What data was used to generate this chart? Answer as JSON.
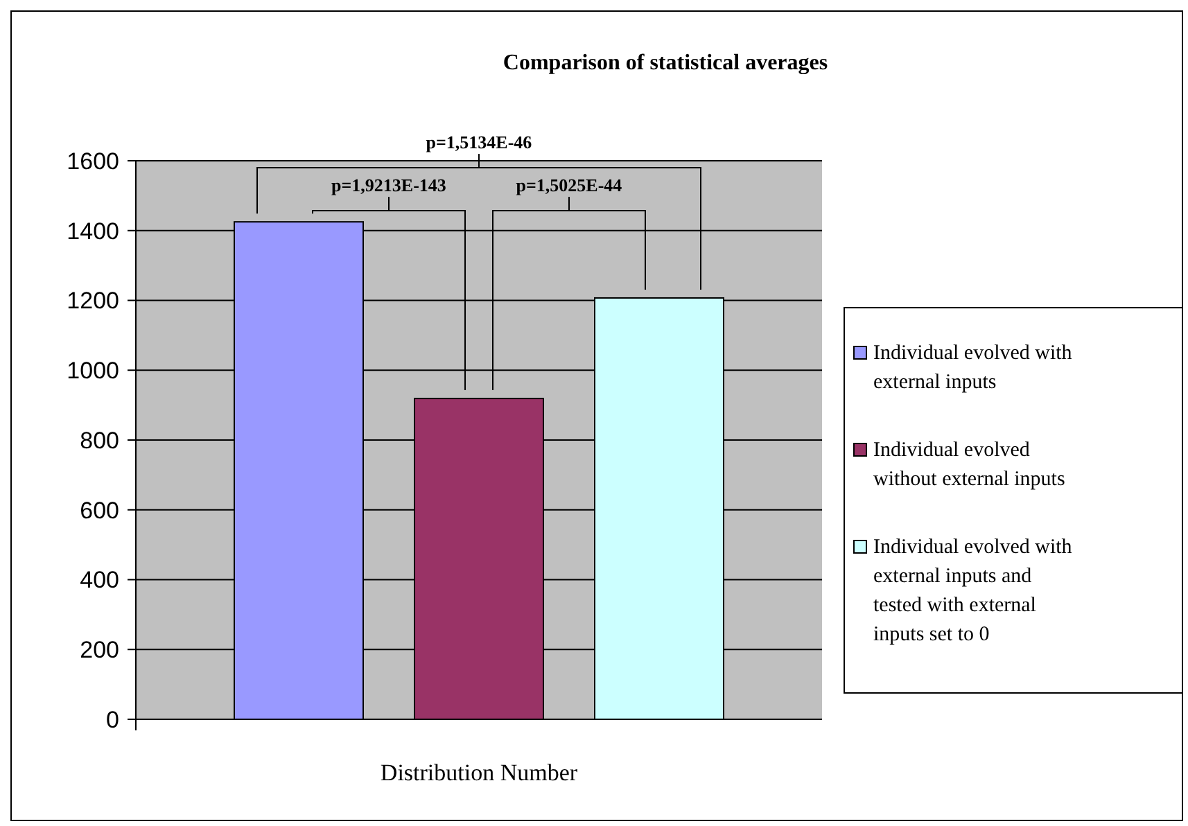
{
  "chart_data": {
    "type": "bar",
    "title": "Comparison of statistical averages",
    "xlabel": "Distribution Number",
    "categories": [
      null
    ],
    "series": [
      {
        "name": "Individual evolved with external inputs",
        "color": "#9999ff",
        "values": [
          1425
        ]
      },
      {
        "name": "Individual evolved without external inputs",
        "color": "#993366",
        "values": [
          919
        ]
      },
      {
        "name": "Individual evolved with external inputs and tested with external inputs set to 0",
        "color": "#ccffff",
        "values": [
          1207
        ]
      }
    ],
    "ylim": [
      0,
      1600
    ],
    "yticks": [
      0,
      200,
      400,
      600,
      800,
      1000,
      1200,
      1400,
      1600
    ],
    "grid": "y",
    "legend": "right",
    "annotations": [
      "p=1,9213E-143",
      "p=1,5025E-44",
      "p=1,5134E-46"
    ]
  }
}
